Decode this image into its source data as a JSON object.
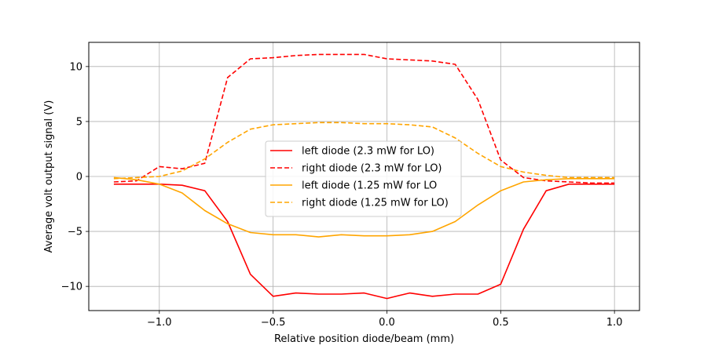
{
  "chart_data": {
    "type": "line",
    "title": "",
    "xlabel": "Relative position diode/beam (mm)",
    "ylabel": "Average volt output signal (V)",
    "xlim": [
      -1.31,
      1.11
    ],
    "ylim": [
      -12.2,
      12.2
    ],
    "xticks": [
      -1.0,
      -0.5,
      0.0,
      0.5,
      1.0
    ],
    "xtick_labels": [
      "−1.0",
      "−0.5",
      "0.0",
      "0.5",
      "1.0"
    ],
    "yticks": [
      -10,
      -5,
      0,
      5,
      10
    ],
    "ytick_labels": [
      "−10",
      "−5",
      "0",
      "5",
      "10"
    ],
    "grid": true,
    "legend_position": "center",
    "x": [
      -1.2,
      -1.1,
      -1.0,
      -0.9,
      -0.8,
      -0.7,
      -0.6,
      -0.5,
      -0.4,
      -0.3,
      -0.2,
      -0.1,
      0.0,
      0.1,
      0.2,
      0.3,
      0.4,
      0.5,
      0.6,
      0.7,
      0.8,
      0.9,
      1.0
    ],
    "series": [
      {
        "name": "left diode (2.3 mW for LO)",
        "color": "#ff0000",
        "dash": "solid",
        "values": [
          -0.7,
          -0.7,
          -0.7,
          -0.8,
          -1.3,
          -4.1,
          -8.9,
          -10.9,
          -10.6,
          -10.7,
          -10.7,
          -10.6,
          -11.1,
          -10.6,
          -10.9,
          -10.7,
          -10.7,
          -9.8,
          -4.8,
          -1.3,
          -0.7,
          -0.7,
          -0.7
        ]
      },
      {
        "name": "right diode (2.3 mW for LO)",
        "color": "#ff0000",
        "dash": "dashed",
        "values": [
          -0.5,
          -0.4,
          0.9,
          0.7,
          1.2,
          9.0,
          10.7,
          10.8,
          11.0,
          11.1,
          11.1,
          11.1,
          10.7,
          10.6,
          10.5,
          10.2,
          7.0,
          1.5,
          -0.1,
          -0.4,
          -0.5,
          -0.6,
          -0.6
        ]
      },
      {
        "name": "left diode (1.25 mW for LO",
        "color": "#ffa500",
        "dash": "solid",
        "values": [
          -0.1,
          -0.3,
          -0.7,
          -1.5,
          -3.1,
          -4.3,
          -5.1,
          -5.3,
          -5.3,
          -5.5,
          -5.3,
          -5.4,
          -5.4,
          -5.3,
          -5.0,
          -4.1,
          -2.6,
          -1.3,
          -0.5,
          -0.3,
          -0.2,
          -0.2,
          -0.2
        ]
      },
      {
        "name": "right diode (1.25 mW for LO)",
        "color": "#ffa500",
        "dash": "dashed",
        "values": [
          -0.2,
          -0.1,
          0.0,
          0.5,
          1.6,
          3.1,
          4.3,
          4.7,
          4.8,
          4.9,
          4.9,
          4.8,
          4.8,
          4.7,
          4.5,
          3.5,
          2.1,
          0.9,
          0.4,
          0.1,
          -0.1,
          -0.1,
          -0.1
        ]
      }
    ]
  }
}
